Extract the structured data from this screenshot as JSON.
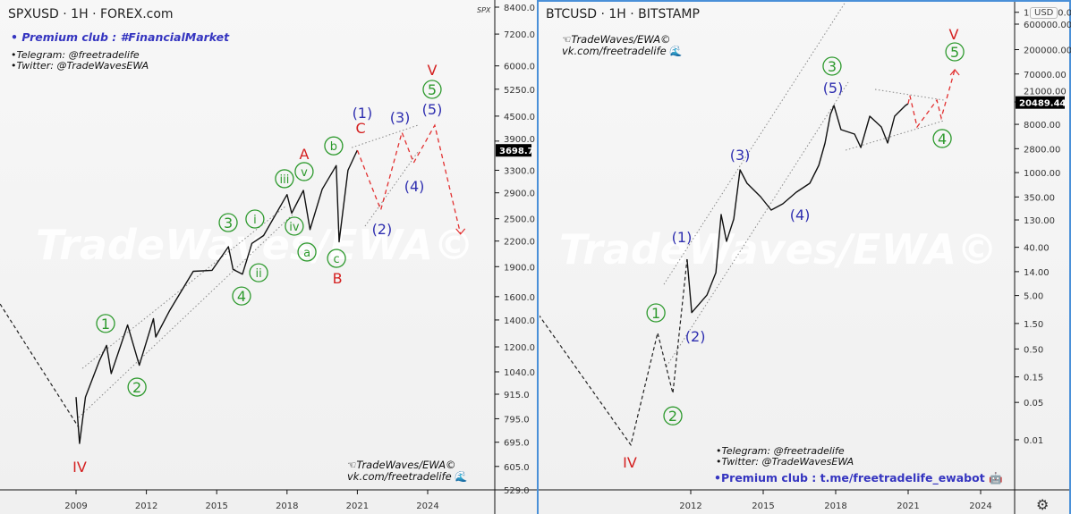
{
  "colors": {
    "green": "#2e9a2e",
    "red": "#d42020",
    "blue": "#2f2fb0",
    "projection": "#e23030",
    "price": "#111111",
    "trend": "#888888",
    "separator": "#4a90d8"
  },
  "left_pane": {
    "title": "SPXUSD · 1H · FOREX.com",
    "corner_symbol": "SPX",
    "premium": "• Premium club : #FinancialMarket",
    "telegram": "•Telegram: @freetradelife",
    "twitter": "•Twitter: @TradeWavesEWA",
    "brand_line1": "TradeWaves/EWA©",
    "brand_line2": "vk.com/freetradelife",
    "watermark": "TradeWaves/EWA©"
  },
  "right_pane": {
    "title": "BTCUSD · 1H · BITSTAMP",
    "brand_line1": "TradeWaves/EWA©",
    "brand_line2": "vk.com/freetradelife",
    "telegram": "•Telegram: @freetradelife",
    "twitter": "•Twitter: @TradeWavesEWA",
    "premium": "•Premium club : t.me/freetradelife_ewabot",
    "currency_button": "USD",
    "settings_icon": "gear-icon",
    "watermark": "TradeWaves/EWA©"
  },
  "chart_data": [
    {
      "type": "line",
      "title": "SPXUSD · 1H · FOREX.com",
      "yscale": "log",
      "ylim": [
        529,
        8400
      ],
      "last_price": "3698.7",
      "y_ticks": [
        "8400.0",
        "7200.0",
        "6000.0",
        "5250.0",
        "4500.0",
        "3900.0",
        "3300.0",
        "2900.0",
        "2500.0",
        "2200.0",
        "1900.0",
        "1600.0",
        "1400.0",
        "1200.0",
        "1040.0",
        "915.0",
        "795.0",
        "695.0",
        "605.0",
        "529.0"
      ],
      "x_ticks": [
        "2009",
        "2012",
        "2015",
        "2018",
        "2021",
        "2024"
      ],
      "price": [
        [
          2009.0,
          900
        ],
        [
          2009.15,
          690
        ],
        [
          2009.4,
          900
        ],
        [
          2010.0,
          1110
        ],
        [
          2010.3,
          1210
        ],
        [
          2010.5,
          1030
        ],
        [
          2011.2,
          1360
        ],
        [
          2011.7,
          1080
        ],
        [
          2012.3,
          1410
        ],
        [
          2012.4,
          1270
        ],
        [
          2013.0,
          1480
        ],
        [
          2014.0,
          1850
        ],
        [
          2014.8,
          1860
        ],
        [
          2015.5,
          2130
        ],
        [
          2015.7,
          1870
        ],
        [
          2016.1,
          1820
        ],
        [
          2016.5,
          2170
        ],
        [
          2017.0,
          2270
        ],
        [
          2018.0,
          2870
        ],
        [
          2018.2,
          2580
        ],
        [
          2018.7,
          2940
        ],
        [
          2018.98,
          2350
        ],
        [
          2019.5,
          2960
        ],
        [
          2020.1,
          3390
        ],
        [
          2020.22,
          2190
        ],
        [
          2020.6,
          3300
        ],
        [
          2020.9,
          3600
        ],
        [
          2021.0,
          3700
        ]
      ],
      "prior_wave": [
        [
          2005.76,
          1534
        ],
        [
          2009.11,
          757
        ]
      ],
      "projection": [
        [
          2021.0,
          3700
        ],
        [
          2022.0,
          2630
        ],
        [
          2022.9,
          4100
        ],
        [
          2023.4,
          3445
        ],
        [
          2024.3,
          4270
        ],
        [
          2025.4,
          2290
        ]
      ],
      "trendlines": [
        [
          [
            2009.27,
            1061
          ],
          [
            2017.97,
            2694
          ]
        ],
        [
          [
            2009.11,
            801
          ],
          [
            2018.24,
            2561
          ]
        ],
        [
          [
            2020.76,
            3757
          ],
          [
            2023.58,
            4272
          ]
        ],
        [
          [
            2021.33,
            2396
          ],
          [
            2023.58,
            3665
          ]
        ]
      ],
      "wave_labels": [
        {
          "text": "IV",
          "style": "red",
          "x": 2009.15,
          "y": 604
        },
        {
          "text": "1",
          "style": "circle",
          "x": 2010.26,
          "y": 1372
        },
        {
          "text": "2",
          "style": "circle",
          "x": 2011.6,
          "y": 953
        },
        {
          "text": "3",
          "style": "circle",
          "x": 2015.49,
          "y": 2445
        },
        {
          "text": "4",
          "style": "circle",
          "x": 2016.06,
          "y": 1606
        },
        {
          "text": "5",
          "style": "circle",
          "x": 2024.19,
          "y": 5245
        },
        {
          "text": "i",
          "style": "circle-small",
          "x": 2016.63,
          "y": 2496
        },
        {
          "text": "ii",
          "style": "circle-small",
          "x": 2016.79,
          "y": 1835
        },
        {
          "text": "iii",
          "style": "circle-small",
          "x": 2017.89,
          "y": 3144
        },
        {
          "text": "iv",
          "style": "circle-small",
          "x": 2018.31,
          "y": 2396
        },
        {
          "text": "v",
          "style": "circle-small",
          "x": 2018.73,
          "y": 3275
        },
        {
          "text": "a",
          "style": "circle-small",
          "x": 2018.85,
          "y": 2066
        },
        {
          "text": "b",
          "style": "circle-small",
          "x": 2019.99,
          "y": 3795
        },
        {
          "text": "c",
          "style": "circle-small",
          "x": 2020.11,
          "y": 1992
        },
        {
          "text": "A",
          "style": "red",
          "x": 2018.73,
          "y": 3627
        },
        {
          "text": "B",
          "style": "red",
          "x": 2020.15,
          "y": 1781
        },
        {
          "text": "C",
          "style": "red",
          "x": 2021.14,
          "y": 4205
        },
        {
          "text": "V",
          "style": "red",
          "x": 2024.19,
          "y": 5875
        },
        {
          "text": "(1)",
          "style": "blue",
          "x": 2021.21,
          "y": 4590
        },
        {
          "text": "(2)",
          "style": "blue",
          "x": 2022.05,
          "y": 2360
        },
        {
          "text": "(3)",
          "style": "blue",
          "x": 2022.82,
          "y": 4475
        },
        {
          "text": "(4)",
          "style": "blue",
          "x": 2023.43,
          "y": 3017
        },
        {
          "text": "(5)",
          "style": "blue",
          "x": 2024.19,
          "y": 4682
        }
      ]
    },
    {
      "type": "line",
      "title": "BTCUSD · 1H · BITSTAMP",
      "yscale": "log",
      "ylim": [
        0.01,
        1000000
      ],
      "last_price": "20489.44",
      "y_ticks": [
        "1000000.00",
        "600000.00",
        "200000.00",
        "70000.00",
        "21000.00",
        "8000.00",
        "2800.00",
        "1000.00",
        "350.00",
        "130.00",
        "40.00",
        "14.00",
        "5.00",
        "1.50",
        "0.50",
        "0.15",
        "0.05",
        "0.01"
      ],
      "x_ticks": [
        "2012",
        "2015",
        "2018",
        "2021",
        "2024"
      ],
      "price": [
        [
          2011.85,
          23.9
        ],
        [
          2012.04,
          2.4
        ],
        [
          2012.67,
          5.1
        ],
        [
          2013.04,
          13.4
        ],
        [
          2013.26,
          164
        ],
        [
          2013.48,
          51.7
        ],
        [
          2013.78,
          135
        ],
        [
          2014.04,
          1125
        ],
        [
          2014.33,
          631
        ],
        [
          2014.89,
          354
        ],
        [
          2015.33,
          199
        ],
        [
          2015.81,
          260
        ],
        [
          2016.37,
          430
        ],
        [
          2016.93,
          631
        ],
        [
          2017.3,
          1366
        ],
        [
          2017.56,
          3575
        ],
        [
          2017.78,
          12260
        ],
        [
          2017.93,
          18030
        ],
        [
          2018.22,
          6370
        ],
        [
          2018.78,
          5250
        ],
        [
          2019.04,
          2948
        ],
        [
          2019.41,
          11340
        ],
        [
          2019.89,
          7150
        ],
        [
          2020.15,
          3575
        ],
        [
          2020.44,
          11340
        ],
        [
          2020.89,
          18030
        ],
        [
          2021.0,
          19500
        ]
      ],
      "prior_wave": [
        [
          2005.7,
          2.19
        ],
        [
          2009.52,
          0.008
        ],
        [
          2010.63,
          1.0
        ],
        [
          2011.26,
          0.074
        ],
        [
          2011.85,
          23.9
        ]
      ],
      "projection": [
        [
          2021.0,
          19500
        ],
        [
          2021.07,
          27600
        ],
        [
          2021.37,
          7150
        ],
        [
          2022.19,
          22700
        ],
        [
          2022.37,
          10500
        ],
        [
          2022.93,
          84200
        ]
      ],
      "trendlines": [
        [
          [
            2010.89,
            8.1
          ],
          [
            2018.41,
            1575000
          ]
        ],
        [
          [
            2011.0,
            0.236
          ],
          [
            2018.52,
            49000
          ]
        ],
        [
          [
            2019.63,
            36000
          ],
          [
            2022.48,
            22700
          ]
        ],
        [
          [
            2018.41,
            2630
          ],
          [
            2022.48,
            9370
          ]
        ]
      ],
      "wave_labels": [
        {
          "text": "IV",
          "style": "red",
          "x": 2009.48,
          "y": 0.0038
        },
        {
          "text": "1",
          "style": "circle",
          "x": 2010.56,
          "y": 2.37
        },
        {
          "text": "2",
          "style": "circle",
          "x": 2011.26,
          "y": 0.028
        },
        {
          "text": "3",
          "style": "circle",
          "x": 2017.85,
          "y": 98200
        },
        {
          "text": "4",
          "style": "circle",
          "x": 2022.41,
          "y": 4340
        },
        {
          "text": "5",
          "style": "circle",
          "x": 2022.93,
          "y": 181900
        },
        {
          "text": "V",
          "style": "red",
          "x": 2022.89,
          "y": 393000
        },
        {
          "text": "(1)",
          "style": "blue",
          "x": 2011.63,
          "y": 62.6
        },
        {
          "text": "(2)",
          "style": "blue",
          "x": 2012.19,
          "y": 0.87
        },
        {
          "text": "(3)",
          "style": "blue",
          "x": 2014.04,
          "y": 2165
        },
        {
          "text": "(4)",
          "style": "blue",
          "x": 2016.52,
          "y": 164
        },
        {
          "text": "(5)",
          "style": "blue",
          "x": 2017.89,
          "y": 38900
        }
      ]
    }
  ]
}
